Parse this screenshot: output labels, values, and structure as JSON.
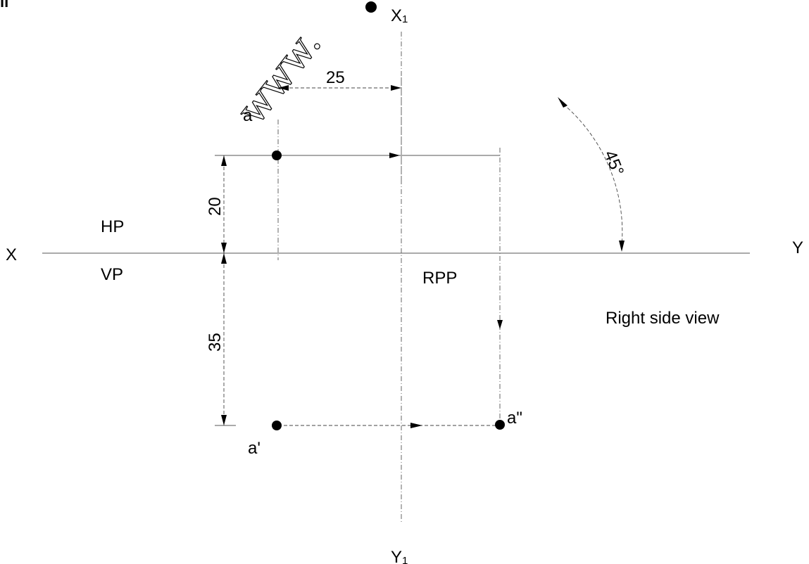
{
  "corner_mark": "ıı",
  "watermark": "www.",
  "labels": {
    "x": "X",
    "y": "Y",
    "x1": "X",
    "x1_sub": "1",
    "y1": "Y",
    "y1_sub": "1",
    "hp": "HP",
    "vp": "VP",
    "rpp": "RPP",
    "right_side_view": "Right side view"
  },
  "points": {
    "top_view": "a",
    "front_view": "a'",
    "side_view": "a\""
  },
  "dimensions": {
    "distance_from_rpp": "25",
    "distance_in_front_of_vp": "20",
    "distance_above_hp": "35",
    "miter_angle": "45°"
  }
}
